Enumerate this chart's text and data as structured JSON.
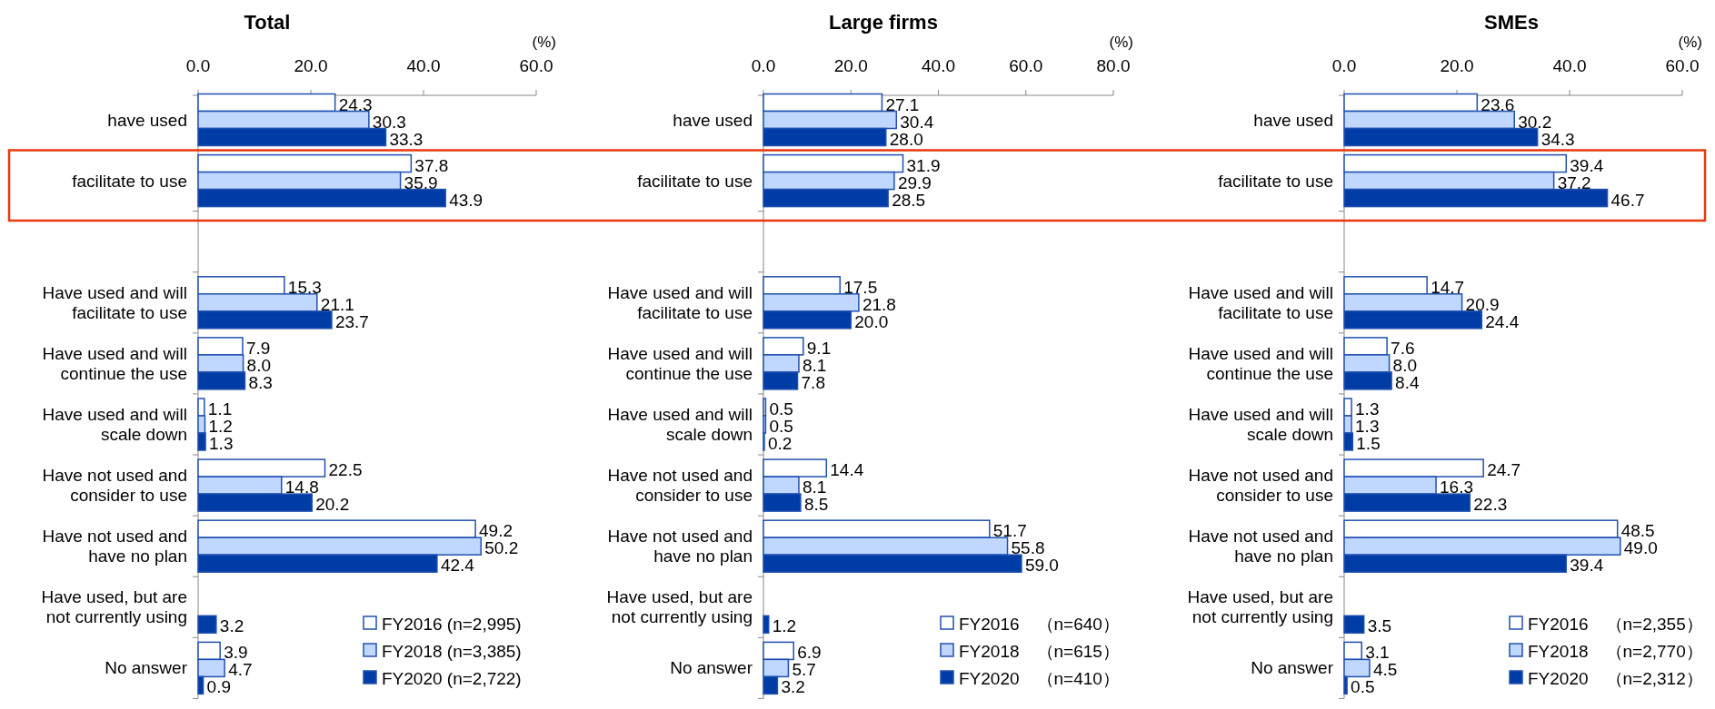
{
  "chart_data": [
    {
      "type": "bar",
      "orientation": "horizontal",
      "title": "Total",
      "annotations": [
        "(%)"
      ],
      "categories": [
        "have used",
        "facilitate to use",
        null,
        "Have used and will\nfacilitate to use",
        "Have used and will\ncontinue the use",
        "Have used and will\nscale down",
        "Have not used and\nconsider to use",
        "Have not used and\nhave no plan",
        "Have used, but are\nnot currently using",
        "No answer"
      ],
      "xlim": [
        0,
        60
      ],
      "xticks": [
        {
          "value": 0,
          "label": "0.0"
        },
        {
          "value": 20,
          "label": "20.0"
        },
        {
          "value": 40,
          "label": "40.0"
        },
        {
          "value": 60,
          "label": "60.0"
        }
      ],
      "legend": "bottom right",
      "series": [
        {
          "name": "FY2016 (n=2,995)",
          "color": "#ffffff",
          "values": [
            24.3,
            37.8,
            null,
            15.3,
            7.9,
            1.1,
            22.5,
            49.2,
            null,
            3.9
          ],
          "value_labels": [
            "24.3",
            "37.8",
            null,
            "15.3",
            "7.9",
            "1.1",
            "22.5",
            "49.2",
            null,
            "3.9"
          ]
        },
        {
          "name": "FY2018 (n=3,385)",
          "color": "#c0d8ff",
          "values": [
            30.3,
            35.9,
            null,
            21.1,
            8.0,
            1.2,
            14.8,
            50.2,
            null,
            4.7
          ],
          "value_labels": [
            "30.3",
            "35.9",
            null,
            "21.1",
            "8.0",
            "1.2",
            "14.8",
            "50.2",
            null,
            "4.7"
          ]
        },
        {
          "name": "FY2020 (n=2,722)",
          "color": "#003ca6",
          "values": [
            33.3,
            43.9,
            null,
            23.7,
            8.3,
            1.3,
            20.2,
            42.4,
            3.2,
            0.9
          ],
          "value_labels": [
            "33.3",
            "43.9",
            null,
            "23.7",
            "8.3",
            "1.3",
            "20.2",
            "42.4",
            "3.2",
            "0.9"
          ]
        }
      ]
    },
    {
      "type": "bar",
      "orientation": "horizontal",
      "title": "Large firms",
      "annotations": [
        "(%)"
      ],
      "categories": [
        "have used",
        "facilitate to use",
        null,
        "Have used and will\nfacilitate to use",
        "Have used and will\ncontinue the use",
        "Have used and will\nscale down",
        "Have not used and\nconsider to use",
        "Have not used and\nhave no plan",
        "Have used, but are\nnot currently using",
        "No answer"
      ],
      "xlim": [
        0,
        80
      ],
      "xticks": [
        {
          "value": 0,
          "label": "0.0"
        },
        {
          "value": 20,
          "label": "20.0"
        },
        {
          "value": 40,
          "label": "40.0"
        },
        {
          "value": 60,
          "label": "60.0"
        },
        {
          "value": 80,
          "label": "80.0"
        }
      ],
      "legend": "bottom right",
      "series": [
        {
          "name": "FY2016　（n=640）",
          "color": "#ffffff",
          "values": [
            27.1,
            31.9,
            null,
            17.5,
            9.1,
            0.5,
            14.4,
            51.7,
            null,
            6.9
          ],
          "value_labels": [
            "27.1",
            "31.9",
            null,
            "17.5",
            "9.1",
            "0.5",
            "14.4",
            "51.7",
            null,
            "6.9"
          ]
        },
        {
          "name": "FY2018　（n=615）",
          "color": "#c0d8ff",
          "values": [
            30.4,
            29.9,
            null,
            21.8,
            8.1,
            0.5,
            8.1,
            55.8,
            null,
            5.7
          ],
          "value_labels": [
            "30.4",
            "29.9",
            null,
            "21.8",
            "8.1",
            "0.5",
            "8.1",
            "55.8",
            null,
            "5.7"
          ]
        },
        {
          "name": "FY2020　（n=410）",
          "color": "#003ca6",
          "values": [
            28.0,
            28.5,
            null,
            20.0,
            7.8,
            0.2,
            8.5,
            59.0,
            1.2,
            3.2
          ],
          "value_labels": [
            "28.0",
            "28.5",
            null,
            "20.0",
            "7.8",
            "0.2",
            "8.5",
            "59.0",
            "1.2",
            "3.2"
          ]
        }
      ]
    },
    {
      "type": "bar",
      "orientation": "horizontal",
      "title": "SMEs",
      "annotations": [
        "(%)"
      ],
      "categories": [
        "have used",
        "facilitate to use",
        null,
        "Have used and will\nfacilitate to use",
        "Have used and will\ncontinue the use",
        "Have used and will\nscale down",
        "Have not used and\nconsider to use",
        "Have not used and\nhave no plan",
        "Have used, but are\nnot currently using",
        "No answer"
      ],
      "xlim": [
        0,
        60
      ],
      "xticks": [
        {
          "value": 0,
          "label": "0.0"
        },
        {
          "value": 20,
          "label": "20.0"
        },
        {
          "value": 40,
          "label": "40.0"
        },
        {
          "value": 60,
          "label": "60.0"
        }
      ],
      "legend": "bottom right",
      "series": [
        {
          "name": "FY2016　（n=2,355）",
          "color": "#ffffff",
          "values": [
            23.6,
            39.4,
            null,
            14.7,
            7.6,
            1.3,
            24.7,
            48.5,
            null,
            3.1
          ],
          "value_labels": [
            "23.6",
            "39.4",
            null,
            "14.7",
            "7.6",
            "1.3",
            "24.7",
            "48.5",
            null,
            "3.1"
          ]
        },
        {
          "name": "FY2018　（n=2,770）",
          "color": "#c0d8ff",
          "values": [
            30.2,
            37.2,
            null,
            20.9,
            8.0,
            1.3,
            16.3,
            49.0,
            null,
            4.5
          ],
          "value_labels": [
            "30.2",
            "37.2",
            null,
            "20.9",
            "8.0",
            "1.3",
            "16.3",
            "49.0",
            null,
            "4.5"
          ]
        },
        {
          "name": "FY2020　（n=2,312）",
          "color": "#003ca6",
          "values": [
            34.3,
            46.7,
            null,
            24.4,
            8.4,
            1.5,
            22.3,
            39.4,
            3.5,
            0.5
          ],
          "value_labels": [
            "34.3",
            "46.7",
            null,
            "24.4",
            "8.4",
            "1.5",
            "22.3",
            "39.4",
            "3.5",
            "0.5"
          ]
        }
      ]
    }
  ]
}
